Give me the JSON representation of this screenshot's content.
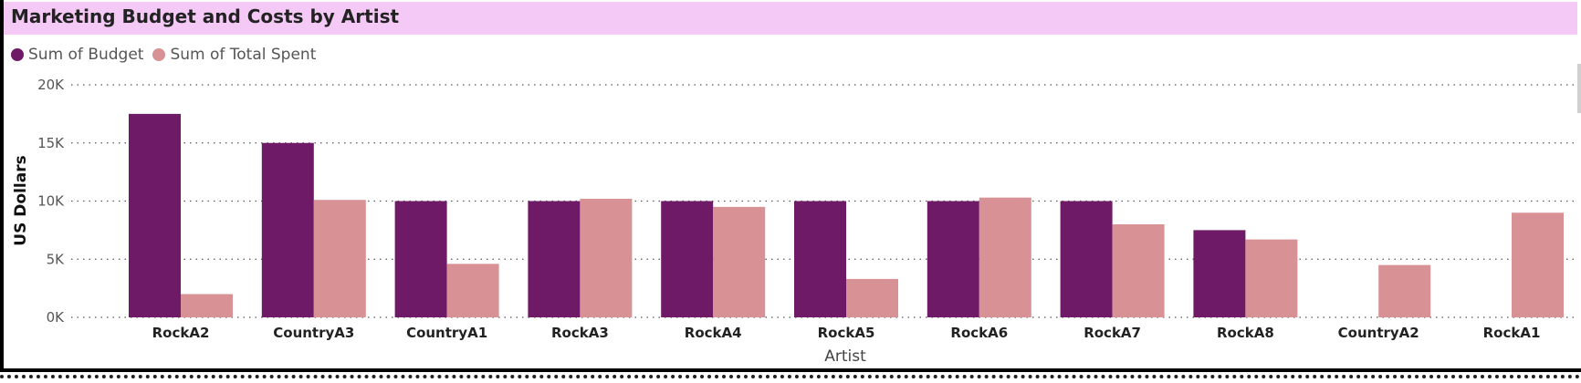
{
  "chart_data": {
    "type": "bar",
    "title": "Marketing Budget and Costs by Artist",
    "xlabel": "Artist",
    "ylabel": "US Dollars",
    "categories": [
      "RockA2",
      "CountryA3",
      "CountryA1",
      "RockA3",
      "RockA4",
      "RockA5",
      "RockA6",
      "RockA7",
      "RockA8",
      "CountryA2",
      "RockA1"
    ],
    "series": [
      {
        "name": "Sum of Budget",
        "color": "#6f1a66",
        "values": [
          17500,
          15000,
          10000,
          10000,
          10000,
          10000,
          10000,
          10000,
          7500,
          0,
          0
        ]
      },
      {
        "name": "Sum of Total Spent",
        "color": "#d89195",
        "values": [
          2000,
          10100,
          4600,
          10200,
          9500,
          3300,
          10300,
          8000,
          6700,
          4500,
          9000
        ]
      }
    ],
    "ylim": [
      0,
      20000
    ],
    "yticks": [
      0,
      5000,
      10000,
      15000,
      20000
    ],
    "ytick_labels": [
      "0K",
      "5K",
      "10K",
      "15K",
      "20K"
    ],
    "grid": true,
    "legend_position": "top-left"
  },
  "header": {
    "background": "#f5c9f5"
  }
}
